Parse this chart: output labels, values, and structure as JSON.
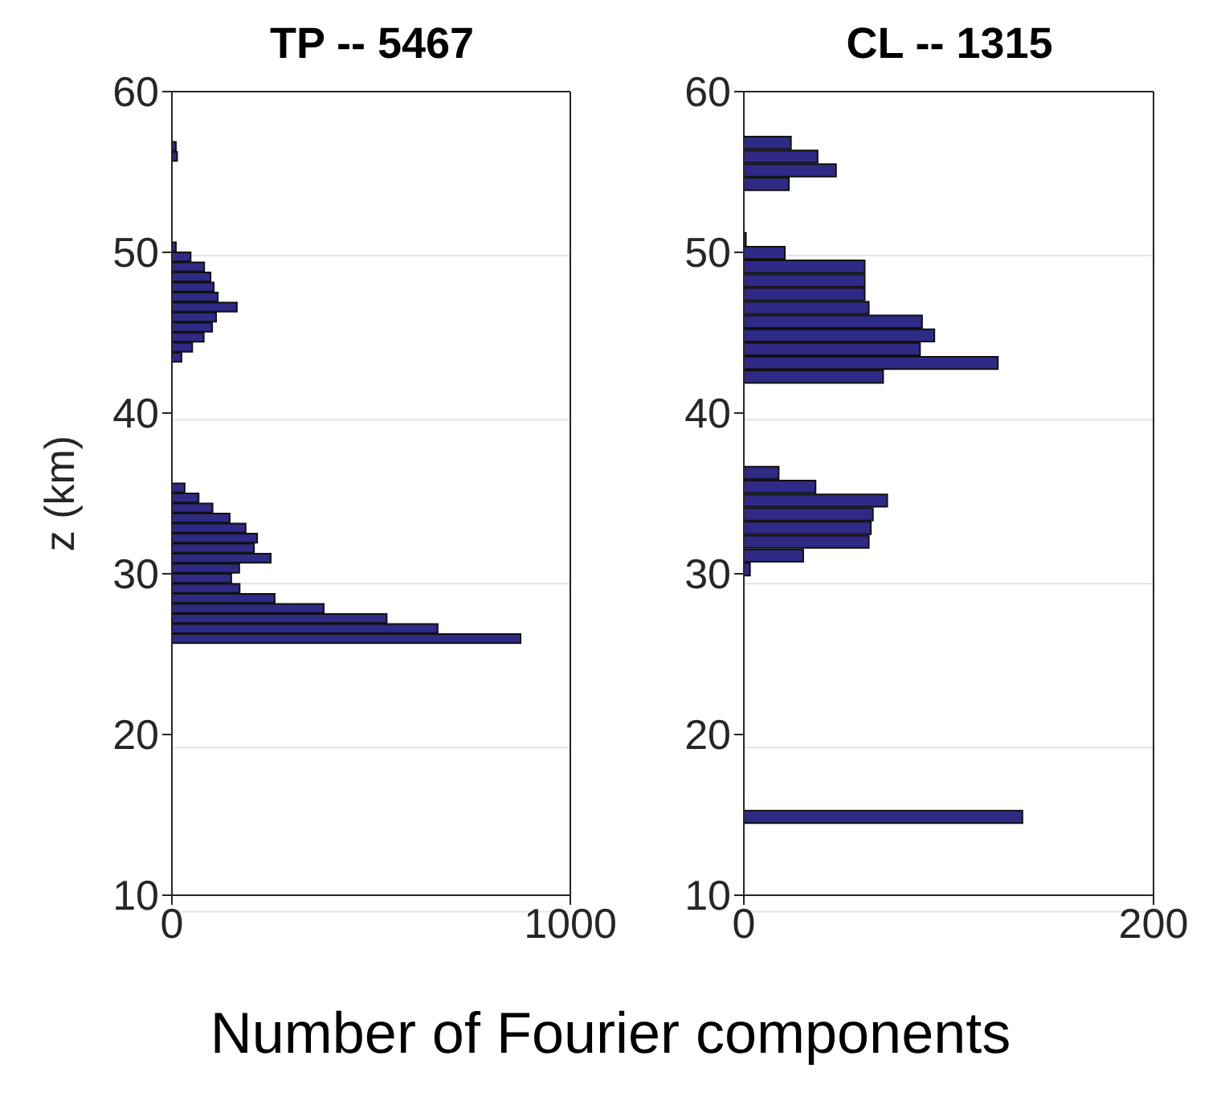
{
  "chart_data": [
    {
      "type": "histogram",
      "orientation": "horizontal",
      "title": "TP -- 5467",
      "ylabel": "z (km)",
      "xlabel": "Number of Fourier components",
      "color": "#2e2a85",
      "grid": "y",
      "xlim": [
        0,
        1000
      ],
      "xticks": [
        0,
        1000
      ],
      "ylim": [
        10,
        60
      ],
      "yticks": [
        10,
        20,
        30,
        40,
        50,
        60
      ],
      "bins": [
        25.625,
        26.25,
        26.875,
        27.5,
        28.125,
        28.75,
        29.375,
        30,
        30.625,
        31.25,
        31.875,
        32.5,
        33.125,
        33.75,
        34.375,
        35,
        35.625,
        36.25,
        36.875,
        37.5,
        38.125,
        38.75,
        39.375,
        40,
        40.625,
        41.25,
        41.875,
        42.5,
        43.125,
        43.75,
        44.375,
        45,
        45.625,
        46.25,
        46.875,
        47.5,
        48.125,
        48.75,
        49.375,
        50,
        50.625,
        51.25,
        51.875,
        52.5,
        53.125,
        53.75,
        54.375,
        55,
        55.625,
        56.25,
        56.875
      ],
      "values": [
        875,
        667,
        539,
        381,
        258,
        170,
        149,
        169,
        248,
        206,
        214,
        185,
        145,
        102,
        67,
        32,
        null,
        0,
        0,
        0,
        0,
        0,
        0,
        0,
        0,
        0,
        0,
        0,
        24,
        51,
        80,
        101,
        111,
        163,
        115,
        105,
        97,
        81,
        47,
        10,
        0,
        0,
        0,
        0,
        0,
        0,
        0,
        0,
        13,
        10
      ]
    },
    {
      "type": "histogram",
      "orientation": "horizontal",
      "title": "CL -- 1315",
      "color": "#2e2a85",
      "grid": "y",
      "xlim": [
        0,
        200
      ],
      "xticks": [
        0,
        200
      ],
      "ylim": [
        10,
        60
      ],
      "yticks": [
        10,
        20,
        30,
        40,
        50,
        60
      ],
      "bins": [
        14.4,
        15.26,
        16.11,
        16.97,
        17.82,
        18.68,
        19.54,
        20.39,
        21.25,
        22.1,
        22.96,
        23.82,
        24.67,
        25.53,
        26.38,
        27.24,
        28.1,
        28.95,
        29.81,
        30.66,
        31.52,
        32.38,
        33.23,
        34.09,
        34.94,
        35.8,
        36.66,
        37.51,
        38.37,
        39.22,
        40.08,
        40.94,
        41.79,
        42.65,
        43.5,
        44.36,
        45.22,
        46.07,
        46.93,
        47.78,
        48.64,
        49.5,
        50.35,
        51.21,
        52.06,
        52.92,
        53.78,
        54.63,
        55.49,
        56.34,
        57.2
      ],
      "values": [
        136,
        0,
        0,
        0,
        0,
        0,
        0,
        0,
        0,
        0,
        0,
        0,
        0,
        0,
        0,
        0,
        0,
        0,
        3,
        29,
        61,
        62,
        63,
        70,
        35,
        17,
        0,
        0,
        0,
        0,
        0,
        0,
        68,
        124,
        86,
        93,
        87,
        61,
        59,
        59,
        59,
        20,
        1,
        0,
        0,
        0,
        22,
        45,
        36,
        23
      ]
    }
  ]
}
